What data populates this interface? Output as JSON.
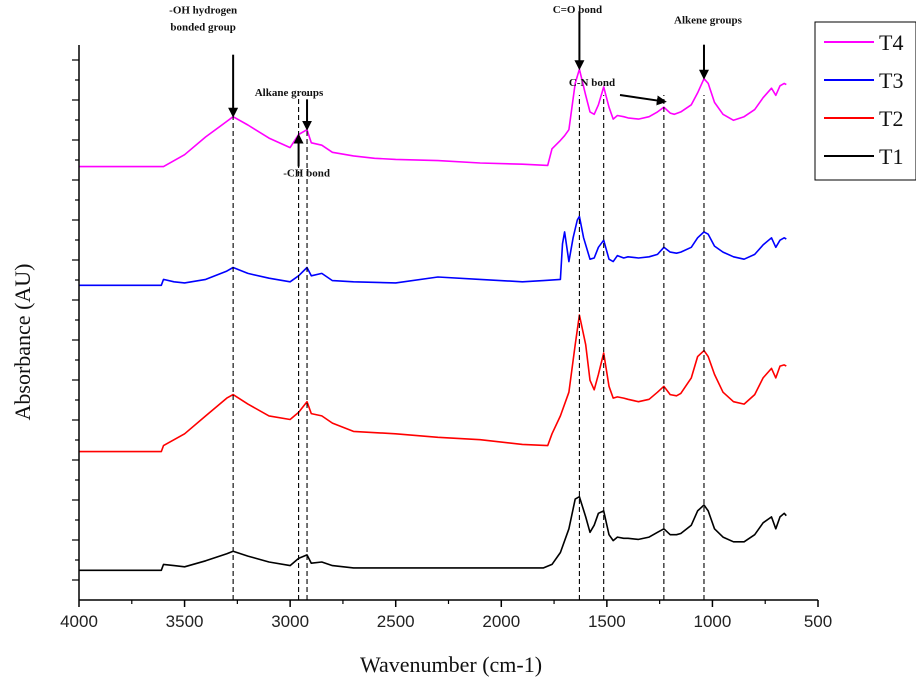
{
  "chart_data": {
    "type": "line",
    "title": "",
    "xlabel": "Wavenumber (cm-1)",
    "ylabel": "Absorbance (AU)",
    "xlim": [
      4000,
      500
    ],
    "x_reversed": true,
    "y_tick_labels_shown": false,
    "x_ticks": [
      4000,
      3500,
      3000,
      2500,
      2000,
      1500,
      1000,
      500
    ],
    "x_tick_labels": [
      "4000",
      "3500",
      "3000",
      "2500",
      "2000",
      "1500",
      "1000",
      "500"
    ],
    "grid": false,
    "legend_position": "top-right",
    "series": [
      {
        "name": "T4",
        "color": "#ff00ff",
        "x": [
          4000,
          3600,
          3500,
          3400,
          3300,
          3270,
          3200,
          3100,
          3000,
          2960,
          2920,
          2900,
          2850,
          2800,
          2700,
          2600,
          2500,
          2300,
          2100,
          1900,
          1780,
          1760,
          1720,
          1700,
          1680,
          1650,
          1630,
          1600,
          1580,
          1560,
          1540,
          1515,
          1490,
          1470,
          1450,
          1420,
          1400,
          1350,
          1300,
          1260,
          1230,
          1200,
          1180,
          1150,
          1100,
          1070,
          1040,
          1020,
          990,
          950,
          900,
          850,
          800,
          760,
          720,
          700,
          680,
          660,
          650
        ],
        "y": [
          3.4,
          3.4,
          3.5,
          3.65,
          3.78,
          3.82,
          3.75,
          3.64,
          3.56,
          3.67,
          3.71,
          3.6,
          3.58,
          3.52,
          3.49,
          3.47,
          3.46,
          3.45,
          3.43,
          3.42,
          3.41,
          3.55,
          3.62,
          3.66,
          3.71,
          4.1,
          4.22,
          4.0,
          3.86,
          3.84,
          3.92,
          4.07,
          3.9,
          3.8,
          3.83,
          3.82,
          3.81,
          3.8,
          3.82,
          3.86,
          3.9,
          3.85,
          3.84,
          3.86,
          3.92,
          4.02,
          4.14,
          4.1,
          3.94,
          3.84,
          3.79,
          3.82,
          3.88,
          3.98,
          4.06,
          4.0,
          4.08,
          4.1,
          4.09
        ]
      },
      {
        "name": "T3",
        "color": "#0000ff",
        "x": [
          4000,
          3610,
          3600,
          3550,
          3500,
          3400,
          3300,
          3270,
          3200,
          3100,
          3000,
          2960,
          2920,
          2900,
          2850,
          2800,
          2700,
          2500,
          2300,
          2100,
          1900,
          1800,
          1720,
          1710,
          1700,
          1680,
          1660,
          1640,
          1630,
          1610,
          1580,
          1560,
          1540,
          1515,
          1490,
          1470,
          1450,
          1420,
          1400,
          1350,
          1300,
          1260,
          1230,
          1200,
          1170,
          1150,
          1100,
          1070,
          1040,
          1020,
          990,
          950,
          900,
          850,
          800,
          760,
          720,
          700,
          680,
          660,
          650
        ],
        "y": [
          2.4,
          2.4,
          2.45,
          2.43,
          2.42,
          2.45,
          2.52,
          2.55,
          2.5,
          2.46,
          2.43,
          2.48,
          2.55,
          2.48,
          2.5,
          2.44,
          2.43,
          2.42,
          2.47,
          2.45,
          2.43,
          2.44,
          2.45,
          2.75,
          2.85,
          2.6,
          2.8,
          2.95,
          2.98,
          2.8,
          2.62,
          2.63,
          2.72,
          2.78,
          2.62,
          2.6,
          2.65,
          2.63,
          2.64,
          2.63,
          2.64,
          2.66,
          2.72,
          2.68,
          2.67,
          2.68,
          2.72,
          2.8,
          2.85,
          2.83,
          2.73,
          2.68,
          2.64,
          2.62,
          2.66,
          2.74,
          2.8,
          2.72,
          2.78,
          2.8,
          2.79
        ]
      },
      {
        "name": "T2",
        "color": "#ff0000",
        "x": [
          4000,
          3610,
          3600,
          3500,
          3400,
          3300,
          3270,
          3200,
          3100,
          3000,
          2960,
          2920,
          2900,
          2850,
          2800,
          2700,
          2500,
          2300,
          2100,
          1900,
          1780,
          1760,
          1720,
          1680,
          1650,
          1630,
          1600,
          1580,
          1560,
          1540,
          1515,
          1490,
          1470,
          1450,
          1420,
          1400,
          1350,
          1300,
          1260,
          1230,
          1200,
          1170,
          1150,
          1100,
          1070,
          1040,
          1020,
          990,
          950,
          900,
          850,
          800,
          760,
          720,
          700,
          680,
          660,
          650
        ],
        "y": [
          1.0,
          1.0,
          1.05,
          1.15,
          1.3,
          1.45,
          1.48,
          1.4,
          1.3,
          1.27,
          1.33,
          1.42,
          1.32,
          1.3,
          1.24,
          1.17,
          1.15,
          1.12,
          1.1,
          1.06,
          1.05,
          1.15,
          1.3,
          1.5,
          1.9,
          2.15,
          1.9,
          1.6,
          1.52,
          1.65,
          1.83,
          1.55,
          1.45,
          1.46,
          1.45,
          1.44,
          1.42,
          1.44,
          1.5,
          1.55,
          1.48,
          1.47,
          1.49,
          1.62,
          1.8,
          1.85,
          1.8,
          1.65,
          1.5,
          1.42,
          1.4,
          1.48,
          1.62,
          1.7,
          1.62,
          1.72,
          1.73,
          1.72
        ]
      },
      {
        "name": "T1",
        "color": "#000000",
        "x": [
          4000,
          3610,
          3600,
          3550,
          3500,
          3400,
          3300,
          3270,
          3200,
          3100,
          3000,
          2960,
          2920,
          2900,
          2850,
          2800,
          2700,
          2500,
          2300,
          2100,
          1900,
          1800,
          1760,
          1720,
          1680,
          1650,
          1630,
          1600,
          1580,
          1560,
          1540,
          1515,
          1490,
          1470,
          1450,
          1420,
          1400,
          1350,
          1300,
          1260,
          1230,
          1200,
          1170,
          1150,
          1100,
          1070,
          1040,
          1020,
          990,
          950,
          900,
          850,
          800,
          760,
          720,
          700,
          680,
          660,
          650
        ],
        "y": [
          0.0,
          0.0,
          0.05,
          0.04,
          0.03,
          0.08,
          0.14,
          0.16,
          0.12,
          0.07,
          0.04,
          0.1,
          0.13,
          0.06,
          0.07,
          0.04,
          0.02,
          0.02,
          0.02,
          0.02,
          0.02,
          0.02,
          0.05,
          0.15,
          0.35,
          0.6,
          0.62,
          0.45,
          0.32,
          0.38,
          0.48,
          0.5,
          0.3,
          0.25,
          0.28,
          0.27,
          0.27,
          0.26,
          0.28,
          0.32,
          0.35,
          0.3,
          0.3,
          0.31,
          0.38,
          0.5,
          0.55,
          0.5,
          0.35,
          0.28,
          0.24,
          0.24,
          0.3,
          0.4,
          0.45,
          0.35,
          0.45,
          0.48,
          0.46
        ]
      }
    ],
    "vlines": [
      3270,
      2960,
      2920,
      1630,
      1515,
      1230,
      1040
    ],
    "annotations": [
      {
        "lines": [
          "-OH hydrogen",
          "bonded group"
        ],
        "x": 3270,
        "y": 3.82
      },
      {
        "lines": [
          "Alkane groups"
        ],
        "x": 2920,
        "y": 3.71
      },
      {
        "lines": [
          "-CH bond"
        ],
        "x": 2960,
        "y": 3.67
      },
      {
        "lines": [
          "C=O bond"
        ],
        "x": 1630,
        "y": 4.22
      },
      {
        "lines": [
          "C-N bond"
        ],
        "x": 1515,
        "y": 4.07
      },
      {
        "lines": [
          "Alkene groups"
        ],
        "x": 1040,
        "y": 4.14
      }
    ]
  }
}
